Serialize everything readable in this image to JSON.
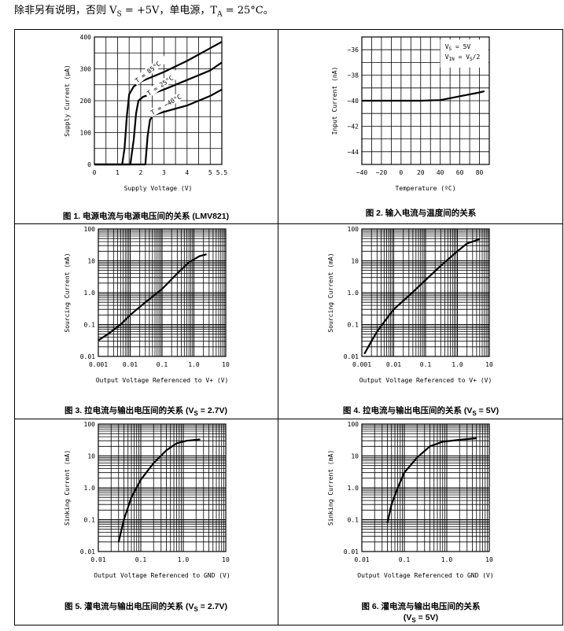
{
  "intro": {
    "pre": "除非另有说明，否则 V",
    "sub1": "S",
    "mid": " = +5V，单电源，T",
    "sub2": "A",
    "post": " = 25°C。"
  },
  "chart_data": [
    {
      "id": "fig1",
      "type": "line",
      "caption": "图 1. 电源电流与电源电压间的关系 (LMV821)",
      "xlabel": "Supply Voltage (V)",
      "ylabel": "Supply Current (μA)",
      "xscale": "linear",
      "yscale": "linear",
      "xlim": [
        0,
        5.5
      ],
      "ylim": [
        0,
        400
      ],
      "xticks": [
        0,
        1,
        2,
        3,
        4,
        5,
        5.5
      ],
      "xtick_labels": [
        "0",
        "1",
        "2",
        "3",
        "4",
        "5",
        "5.5"
      ],
      "yticks": [
        0,
        100,
        200,
        300,
        400
      ],
      "ytick_labels": [
        "0",
        "100",
        "200",
        "300",
        "400"
      ],
      "grid": true,
      "series": [
        {
          "name": "T = 85°C",
          "x": [
            0,
            1.2,
            1.3,
            1.4,
            1.5,
            1.7,
            2,
            3,
            4,
            5,
            5.5
          ],
          "y": [
            0,
            0,
            50,
            150,
            220,
            245,
            260,
            290,
            325,
            365,
            385
          ]
        },
        {
          "name": "T = 25°C",
          "x": [
            0,
            1.55,
            1.7,
            1.8,
            1.9,
            2.1,
            3,
            4,
            5,
            5.5
          ],
          "y": [
            0,
            0,
            80,
            160,
            200,
            212,
            235,
            265,
            295,
            320
          ]
        },
        {
          "name": "T = −40°C",
          "x": [
            0,
            2.2,
            2.3,
            2.4,
            2.55,
            3,
            4,
            5,
            5.5
          ],
          "y": [
            0,
            0,
            90,
            140,
            155,
            165,
            185,
            215,
            235
          ]
        }
      ],
      "annotations": [
        "T = 85°C",
        "T = 25°C",
        "T = −40°C"
      ]
    },
    {
      "id": "fig2",
      "type": "line",
      "caption": "图 2. 输入电流与温度间的关系",
      "xlabel": "Temperature (ºC)",
      "ylabel": "Input Current (nA)",
      "xscale": "linear",
      "yscale": "linear",
      "xlim": [
        -40,
        90
      ],
      "ylim": [
        -45,
        -35
      ],
      "xticks": [
        -40,
        -20,
        0,
        20,
        40,
        60,
        80
      ],
      "xtick_labels": [
        "−40",
        "−20",
        "0",
        "20",
        "40",
        "60",
        "80"
      ],
      "yticks": [
        -36,
        -38,
        -40,
        -42,
        -44
      ],
      "ytick_labels": [
        "−36",
        "−38",
        "−40",
        "−42",
        "−44"
      ],
      "grid": true,
      "legend": {
        "vs": "5V",
        "vin": "V",
        "vin_sub": "S",
        "vin_tail": "/2"
      },
      "series": [
        {
          "x": [
            -40,
            -20,
            0,
            20,
            40,
            50,
            60,
            70,
            80,
            85
          ],
          "y": [
            -40,
            -40,
            -40,
            -40,
            -39.95,
            -39.8,
            -39.65,
            -39.5,
            -39.35,
            -39.25
          ]
        }
      ]
    },
    {
      "id": "fig3",
      "type": "line",
      "caption": "图 3. 拉电流与输出电压间的关系 (V",
      "caption_sub": "S",
      "caption_tail": " = 2.7V)",
      "xlabel": "Output Voltage Referenced to V+ (V)",
      "ylabel": "Sourcing Current (mA)",
      "xscale": "log",
      "yscale": "log",
      "xlim": [
        0.001,
        10
      ],
      "ylim": [
        0.01,
        100
      ],
      "xticks": [
        0.001,
        0.01,
        0.1,
        1,
        10
      ],
      "xtick_labels": [
        "0.001",
        "0.01",
        "0.1",
        "1.0",
        "10"
      ],
      "yticks": [
        0.01,
        0.1,
        1,
        10,
        100
      ],
      "ytick_labels": [
        "0.01",
        "0.1",
        "1.0",
        "10",
        "100"
      ],
      "grid": true,
      "series": [
        {
          "x": [
            0.001,
            0.002,
            0.005,
            0.01,
            0.03,
            0.1,
            0.3,
            0.7,
            1.5,
            2.5
          ],
          "y": [
            0.032,
            0.05,
            0.1,
            0.2,
            0.5,
            1.3,
            4,
            9,
            14,
            16
          ]
        }
      ]
    },
    {
      "id": "fig4",
      "type": "line",
      "caption": "图 4. 拉电流与输出电压间的关系 (V",
      "caption_sub": "S",
      "caption_tail": " = 5V)",
      "xlabel": "Output Voltage Referenced to V+ (V)",
      "ylabel": "Sourcing Current (mA)",
      "xscale": "log",
      "yscale": "log",
      "xlim": [
        0.001,
        10
      ],
      "ylim": [
        0.01,
        100
      ],
      "xticks": [
        0.001,
        0.01,
        0.1,
        1,
        10
      ],
      "xtick_labels": [
        "0.001",
        "0.01",
        "0.1",
        "1.0",
        "10"
      ],
      "yticks": [
        0.01,
        0.1,
        1,
        10,
        100
      ],
      "ytick_labels": [
        "0.01",
        "0.1",
        "1.0",
        "10",
        "100"
      ],
      "grid": true,
      "series": [
        {
          "x": [
            0.0012,
            0.002,
            0.003,
            0.005,
            0.01,
            0.03,
            0.1,
            0.3,
            1,
            2,
            5
          ],
          "y": [
            0.012,
            0.03,
            0.06,
            0.12,
            0.3,
            0.8,
            2.5,
            7,
            20,
            35,
            48
          ]
        }
      ]
    },
    {
      "id": "fig5",
      "type": "line",
      "caption": "图 5. 灌电流与输出电压间的关系 (V",
      "caption_sub": "S",
      "caption_tail": " = 2.7V)",
      "xlabel": "Output Voltage Referenced to GND (V)",
      "ylabel": "Sinking Current (mA)",
      "xscale": "log",
      "yscale": "log",
      "xlim": [
        0.01,
        10
      ],
      "ylim": [
        0.01,
        100
      ],
      "xticks": [
        0.01,
        0.1,
        1,
        10
      ],
      "xtick_labels": [
        "0.01",
        "0.1",
        "1.0",
        "10"
      ],
      "yticks": [
        0.01,
        0.1,
        1,
        10,
        100
      ],
      "ytick_labels": [
        "0.01",
        "0.1",
        "1.0",
        "10",
        "100"
      ],
      "grid": true,
      "series": [
        {
          "x": [
            0.03,
            0.04,
            0.06,
            0.1,
            0.2,
            0.4,
            0.7,
            1.2,
            2.5
          ],
          "y": [
            0.02,
            0.1,
            0.5,
            1.8,
            6,
            15,
            25,
            30,
            33
          ]
        }
      ]
    },
    {
      "id": "fig6",
      "type": "line",
      "caption": "图 6. 灌电流与输出电压间的关系",
      "caption2": "(V",
      "caption_sub": "S",
      "caption_tail": " = 5V)",
      "xlabel": "Output Voltage Referenced to GND (V)",
      "ylabel": "Sinking Current (mA)",
      "xscale": "log",
      "yscale": "log",
      "xlim": [
        0.01,
        10
      ],
      "ylim": [
        0.01,
        100
      ],
      "xticks": [
        0.01,
        0.1,
        1,
        10
      ],
      "xtick_labels": [
        "0.01",
        "0.1",
        "1.0",
        "10"
      ],
      "yticks": [
        0.01,
        0.1,
        1,
        10,
        100
      ],
      "ytick_labels": [
        "0.01",
        "0.1",
        "1.0",
        "10",
        "100"
      ],
      "grid": true,
      "series": [
        {
          "x": [
            0.04,
            0.05,
            0.07,
            0.1,
            0.2,
            0.4,
            0.8,
            2,
            5
          ],
          "y": [
            0.08,
            0.3,
            1,
            3,
            9,
            20,
            28,
            32,
            36
          ]
        }
      ]
    }
  ]
}
